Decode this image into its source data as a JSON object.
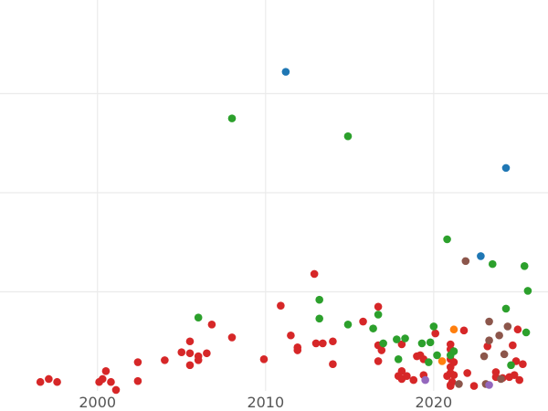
{
  "colors": {
    "background": "#ffffff",
    "grid": "#ebebeb",
    "tick_text": "#555555",
    "red": "#d62728",
    "green": "#2ca02c",
    "blue": "#1f77b4",
    "orange": "#ff7f0e",
    "brown": "#8c564b",
    "purple": "#9467bd"
  },
  "chart_data": {
    "type": "scatter",
    "title": "",
    "xlabel": "",
    "ylabel": "",
    "xlim": [
      1994.2,
      2026.8
    ],
    "ylim": [
      0,
      4
    ],
    "x_ticks": [
      2000,
      2010,
      2020
    ],
    "x_tick_labels": [
      "2000",
      "2010",
      "2020"
    ],
    "y_gridlines": [
      1,
      2,
      3,
      4
    ],
    "y_tick_labels_visible": false,
    "grid": true,
    "legend": "none",
    "series": [
      {
        "color": "red",
        "points": [
          [
            1996.6,
            0.09
          ],
          [
            1997.1,
            0.12
          ],
          [
            1997.6,
            0.09
          ],
          [
            2000.1,
            0.09
          ],
          [
            2000.3,
            0.12
          ],
          [
            2000.5,
            0.2
          ],
          [
            2000.8,
            0.09
          ],
          [
            2001.1,
            0.01
          ],
          [
            2002.4,
            0.29
          ],
          [
            2002.4,
            0.1
          ],
          [
            2004.0,
            0.31
          ],
          [
            2005.0,
            0.39
          ],
          [
            2005.5,
            0.5
          ],
          [
            2005.5,
            0.38
          ],
          [
            2005.5,
            0.26
          ],
          [
            2006.0,
            0.35
          ],
          [
            2006.0,
            0.31
          ],
          [
            2006.5,
            0.38
          ],
          [
            2006.8,
            0.67
          ],
          [
            2008.0,
            0.54
          ],
          [
            2009.9,
            0.32
          ],
          [
            2010.9,
            0.86
          ],
          [
            2011.5,
            0.56
          ],
          [
            2011.9,
            0.44
          ],
          [
            2011.9,
            0.41
          ],
          [
            2012.9,
            1.18
          ],
          [
            2013.0,
            0.48
          ],
          [
            2013.4,
            0.48
          ],
          [
            2014.0,
            0.27
          ],
          [
            2014.0,
            0.5
          ],
          [
            2015.8,
            0.7
          ],
          [
            2016.7,
            0.85
          ],
          [
            2016.7,
            0.3
          ],
          [
            2016.7,
            0.46
          ],
          [
            2016.9,
            0.41
          ],
          [
            2017.9,
            0.15
          ],
          [
            2018.1,
            0.12
          ],
          [
            2018.1,
            0.2
          ],
          [
            2018.1,
            0.47
          ],
          [
            2018.4,
            0.15
          ],
          [
            2018.8,
            0.11
          ],
          [
            2019.0,
            0.35
          ],
          [
            2019.2,
            0.36
          ],
          [
            2019.4,
            0.32
          ],
          [
            2019.4,
            0.16
          ],
          [
            2020.1,
            0.58
          ],
          [
            2020.8,
            0.15
          ],
          [
            2021.0,
            0.42
          ],
          [
            2021.0,
            0.47
          ],
          [
            2021.0,
            0.32
          ],
          [
            2021.0,
            0.24
          ],
          [
            2021.0,
            0.18
          ],
          [
            2021.0,
            0.06
          ],
          [
            2021.1,
            0.09
          ],
          [
            2021.0,
            0.05
          ],
          [
            2021.2,
            0.16
          ],
          [
            2021.2,
            0.29
          ],
          [
            2021.8,
            0.61
          ],
          [
            2022.0,
            0.18
          ],
          [
            2022.4,
            0.05
          ],
          [
            2023.2,
            0.45
          ],
          [
            2023.7,
            0.19
          ],
          [
            2023.7,
            0.14
          ],
          [
            2024.1,
            0.13
          ],
          [
            2024.5,
            0.14
          ],
          [
            2024.7,
            0.46
          ],
          [
            2024.8,
            0.16
          ],
          [
            2024.9,
            0.3
          ],
          [
            2025.0,
            0.62
          ],
          [
            2025.1,
            0.11
          ],
          [
            2025.3,
            0.27
          ]
        ]
      },
      {
        "color": "green",
        "points": [
          [
            2006.0,
            0.74
          ],
          [
            2008.0,
            2.75
          ],
          [
            2013.2,
            0.92
          ],
          [
            2013.2,
            0.73
          ],
          [
            2014.9,
            2.57
          ],
          [
            2014.9,
            0.67
          ],
          [
            2016.4,
            0.63
          ],
          [
            2016.7,
            0.77
          ],
          [
            2017.0,
            0.48
          ],
          [
            2017.8,
            0.52
          ],
          [
            2017.9,
            0.32
          ],
          [
            2018.3,
            0.53
          ],
          [
            2019.3,
            0.48
          ],
          [
            2019.7,
            0.29
          ],
          [
            2019.8,
            0.49
          ],
          [
            2020.0,
            0.65
          ],
          [
            2020.2,
            0.36
          ],
          [
            2020.8,
            1.53
          ],
          [
            2021.0,
            0.36
          ],
          [
            2021.2,
            0.4
          ],
          [
            2023.5,
            1.28
          ],
          [
            2024.3,
            0.83
          ],
          [
            2024.6,
            0.26
          ],
          [
            2025.4,
            1.26
          ],
          [
            2025.5,
            0.59
          ],
          [
            2025.6,
            1.01
          ]
        ]
      },
      {
        "color": "blue",
        "points": [
          [
            2011.2,
            3.22
          ],
          [
            2022.8,
            1.36
          ],
          [
            2024.3,
            2.25
          ]
        ]
      },
      {
        "color": "orange",
        "points": [
          [
            2020.5,
            0.3
          ],
          [
            2021.2,
            0.62
          ]
        ]
      },
      {
        "color": "brown",
        "points": [
          [
            2021.9,
            1.31
          ],
          [
            2023.0,
            0.35
          ],
          [
            2023.1,
            0.07
          ],
          [
            2023.3,
            0.51
          ],
          [
            2023.3,
            0.7
          ],
          [
            2023.9,
            0.56
          ],
          [
            2024.0,
            0.12
          ],
          [
            2024.2,
            0.37
          ],
          [
            2024.4,
            0.65
          ],
          [
            2021.5,
            0.07
          ]
        ]
      },
      {
        "color": "purple",
        "points": [
          [
            2019.5,
            0.11
          ],
          [
            2023.3,
            0.06
          ]
        ]
      }
    ]
  }
}
